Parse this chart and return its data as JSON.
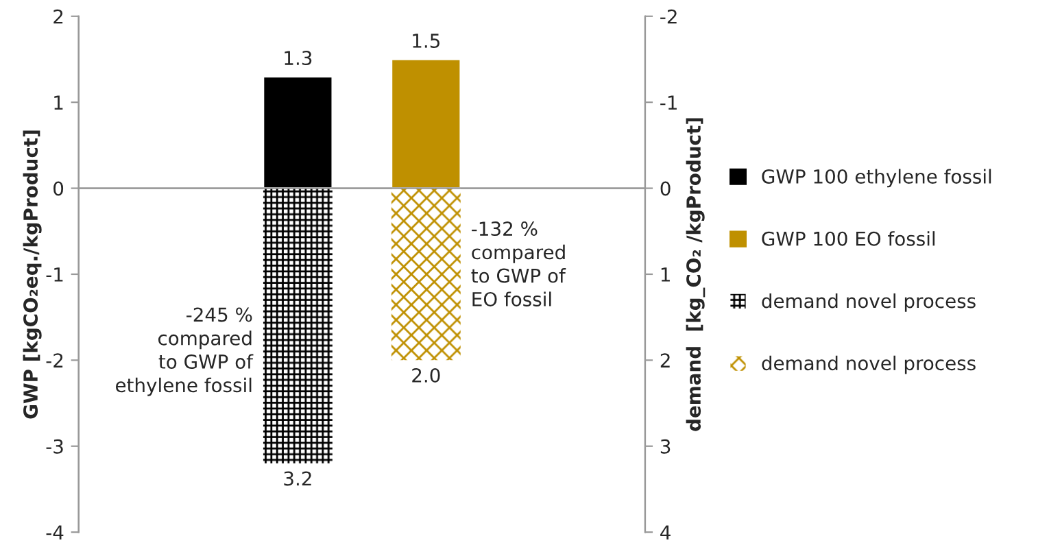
{
  "chart_data": {
    "type": "bar",
    "categories": [
      null,
      null
    ],
    "ylabel": "GWP [kgCO₂eq./kgProduct]",
    "y2label": "demand  [kg_CO₂ /kgProduct]",
    "ylim": [
      -4,
      2
    ],
    "yticks": [
      -4,
      -3,
      -2,
      -1,
      0,
      1,
      2
    ],
    "y2lim": [
      4,
      -2
    ],
    "y2ticks": [
      4,
      3,
      2,
      1,
      0,
      -1,
      -2
    ],
    "series": [
      {
        "name": "GWP 100 ethylene fossil",
        "color": "#000000",
        "values": [
          1.3,
          null
        ],
        "value_labels": [
          "1.3",
          null
        ]
      },
      {
        "name": "GWP 100 EO fossil",
        "color": "#bf9000",
        "values": [
          null,
          1.5
        ],
        "value_labels": [
          null,
          "1.5"
        ]
      },
      {
        "name": "demand novel process",
        "color": "#000000",
        "values": [
          3.2,
          null
        ],
        "axis": "y2",
        "value_labels": [
          "3.2",
          null
        ]
      },
      {
        "name": "demand novel process",
        "color": "#bf9000",
        "values": [
          null,
          2.0
        ],
        "axis": "y2",
        "value_labels": [
          null,
          "2.0"
        ]
      }
    ],
    "stacked": true,
    "legend": "right",
    "annotations": [
      "-245 %\ncompared\nto GWP of\nethylene fossil",
      "-132 %\ncompared\nto GWP of\nEO fossil"
    ]
  }
}
